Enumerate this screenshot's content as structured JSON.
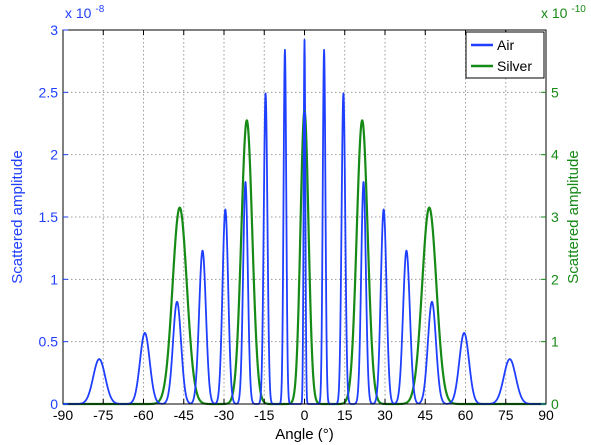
{
  "colors": {
    "air": "#1f3fff",
    "silver": "#168a16",
    "grid": "#9a9a9a",
    "axis": "#000000"
  },
  "chart_data": {
    "type": "line",
    "xlabel": "Angle (°)",
    "ylabel_left": "Scattered amplitude",
    "ylabel_right": "Scattered amplitude",
    "x_ticks": [
      "-90",
      "-75",
      "-60",
      "-45",
      "-30",
      "-15",
      "0",
      "15",
      "30",
      "45",
      "60",
      "75",
      "90"
    ],
    "x_range": [
      -90,
      90
    ],
    "y_left_ticks": [
      "0",
      "0.5",
      "1",
      "1.5",
      "2",
      "2.5",
      "3"
    ],
    "y_left_range": [
      0,
      3
    ],
    "y_left_exponent": {
      "base": "x 10",
      "power": "-8"
    },
    "y_right_ticks": [
      "0",
      "1",
      "2",
      "3",
      "4",
      "5"
    ],
    "y_right_range": [
      0,
      6
    ],
    "y_right_exponent": {
      "base": "x 10",
      "power": "-10"
    },
    "grid": true,
    "legend_position": "top-right",
    "series": [
      {
        "name": "Air",
        "axis": "left",
        "color": "#1f3fff",
        "peaks": [
          {
            "x": -76.5,
            "y": 0.36
          },
          {
            "x": -59.5,
            "y": 0.57
          },
          {
            "x": -47.5,
            "y": 0.82
          },
          {
            "x": -38.0,
            "y": 1.23
          },
          {
            "x": -29.5,
            "y": 1.56
          },
          {
            "x": -22.0,
            "y": 1.78
          },
          {
            "x": -14.5,
            "y": 2.49
          },
          {
            "x": -7.3,
            "y": 2.84
          },
          {
            "x": 0.0,
            "y": 2.92
          },
          {
            "x": 7.3,
            "y": 2.84
          },
          {
            "x": 14.5,
            "y": 2.49
          },
          {
            "x": 22.0,
            "y": 1.78
          },
          {
            "x": 29.5,
            "y": 1.56
          },
          {
            "x": 38.0,
            "y": 1.23
          },
          {
            "x": 47.5,
            "y": 0.82
          },
          {
            "x": 59.5,
            "y": 0.57
          },
          {
            "x": 76.5,
            "y": 0.36
          }
        ]
      },
      {
        "name": "Silver",
        "axis": "right",
        "color": "#168a16",
        "peaks": [
          {
            "x": -46.5,
            "y": 3.15
          },
          {
            "x": -21.5,
            "y": 4.55
          },
          {
            "x": 0.0,
            "y": 4.7
          },
          {
            "x": 21.5,
            "y": 4.55
          },
          {
            "x": 46.5,
            "y": 3.15
          }
        ]
      }
    ]
  }
}
